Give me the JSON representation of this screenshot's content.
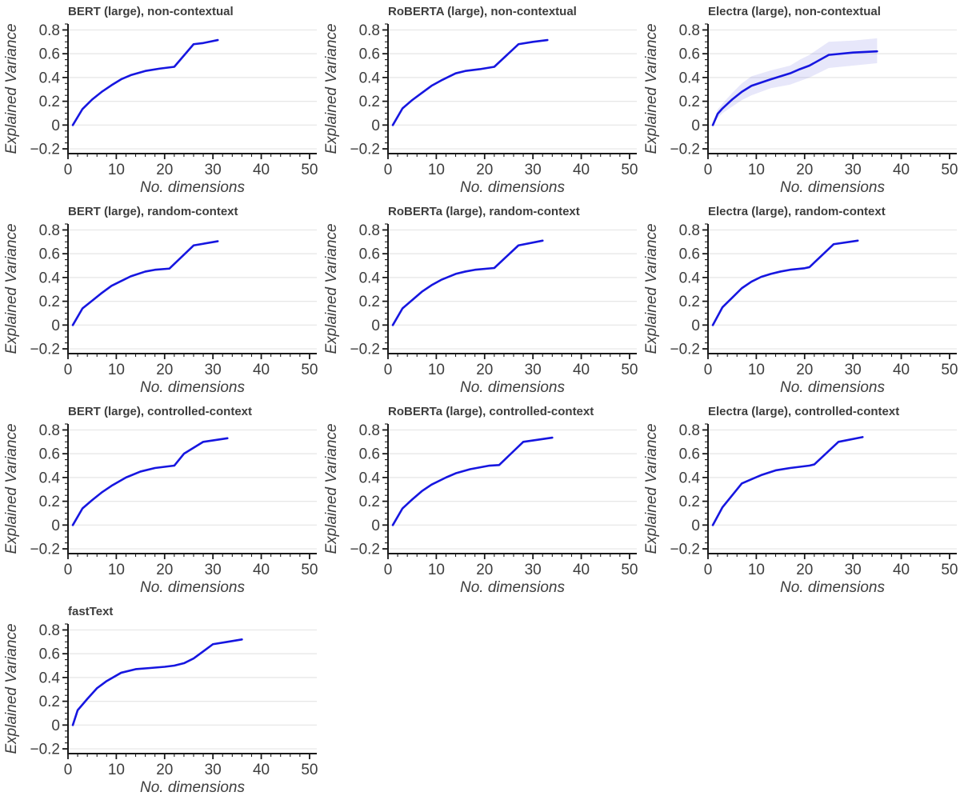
{
  "figure_title": "",
  "colors": {
    "line": "#1616e0",
    "band_fill": "#6a6ae0",
    "band_opacity": 0.16,
    "grid": "#e6e6e6",
    "spine": "#1a1a1a",
    "text": "#3d3d3d",
    "background": "#ffffff"
  },
  "axes_style": {
    "xlabel": "No. dimensions",
    "ylabel": "Explained Variance",
    "xlim": [
      0,
      50
    ],
    "ylim": [
      -0.2,
      0.85
    ],
    "x_major_ticks": [
      0,
      10,
      20,
      30,
      40,
      50
    ],
    "x_tick_labels": [
      "0",
      "10",
      "20",
      "30",
      "40",
      "50"
    ],
    "x_minor_step": 2,
    "y_major_ticks": [
      -0.2,
      0,
      0.2,
      0.4,
      0.6,
      0.8
    ],
    "y_tick_labels": [
      "−0.2",
      "0",
      "0.2",
      "0.4",
      "0.6",
      "0.8"
    ],
    "y_minor_step": 0.05,
    "grid": "horizontal-major-only",
    "legend": "none"
  },
  "chart_data": [
    {
      "type": "line",
      "title": "BERT (large), non-contextual",
      "xlabel": "No. dimensions",
      "ylabel": "Explained Variance",
      "x": [
        1,
        3,
        5,
        7,
        9,
        11,
        13,
        16,
        19,
        22,
        26,
        28,
        31
      ],
      "y": [
        0,
        0.135,
        0.215,
        0.28,
        0.335,
        0.385,
        0.42,
        0.455,
        0.475,
        0.49,
        0.68,
        0.69,
        0.715
      ]
    },
    {
      "type": "line",
      "title": "RoBERTA (large), non-contextual",
      "xlabel": "No. dimensions",
      "ylabel": "Explained Variance",
      "x": [
        1,
        3,
        5,
        7,
        9,
        11,
        14,
        16,
        19,
        22,
        27,
        30,
        33
      ],
      "y": [
        0,
        0.14,
        0.21,
        0.27,
        0.33,
        0.375,
        0.435,
        0.455,
        0.47,
        0.49,
        0.68,
        0.7,
        0.715
      ]
    },
    {
      "type": "line",
      "title": "Electra (large), non-contextual",
      "xlabel": "No. dimensions",
      "ylabel": "Explained Variance",
      "x": [
        1,
        2,
        3,
        5,
        7,
        9,
        13,
        17,
        19,
        21,
        25,
        30,
        35
      ],
      "y": [
        0,
        0.095,
        0.14,
        0.215,
        0.28,
        0.33,
        0.385,
        0.435,
        0.47,
        0.5,
        0.59,
        0.61,
        0.62
      ],
      "band_lower": [
        0,
        0.06,
        0.1,
        0.155,
        0.21,
        0.25,
        0.31,
        0.34,
        0.37,
        0.4,
        0.48,
        0.5,
        0.52
      ],
      "band_upper": [
        0.005,
        0.13,
        0.18,
        0.27,
        0.35,
        0.41,
        0.46,
        0.5,
        0.55,
        0.59,
        0.7,
        0.71,
        0.73
      ]
    },
    {
      "type": "line",
      "title": "BERT (large), random-context",
      "xlabel": "No. dimensions",
      "ylabel": "Explained Variance",
      "x": [
        1,
        3,
        5,
        7,
        9,
        11,
        13,
        16,
        18,
        21,
        26,
        31
      ],
      "y": [
        0,
        0.14,
        0.205,
        0.27,
        0.33,
        0.37,
        0.41,
        0.45,
        0.465,
        0.475,
        0.67,
        0.705
      ]
    },
    {
      "type": "line",
      "title": "RoBERTa (large), random-context",
      "xlabel": "No. dimensions",
      "ylabel": "Explained Variance",
      "x": [
        1,
        3,
        5,
        7,
        9,
        11,
        14,
        16,
        18,
        22,
        27,
        32
      ],
      "y": [
        0,
        0.14,
        0.21,
        0.28,
        0.335,
        0.38,
        0.43,
        0.45,
        0.465,
        0.48,
        0.67,
        0.71
      ]
    },
    {
      "type": "line",
      "title": "Electra (large), random-context",
      "xlabel": "No. dimensions",
      "ylabel": "Explained Variance",
      "x": [
        1,
        3,
        5,
        7,
        9,
        11,
        13,
        15,
        17,
        20,
        21,
        26,
        31
      ],
      "y": [
        0,
        0.15,
        0.23,
        0.31,
        0.365,
        0.405,
        0.43,
        0.45,
        0.465,
        0.478,
        0.487,
        0.68,
        0.71
      ]
    },
    {
      "type": "line",
      "title": "BERT (large), controlled-context",
      "xlabel": "No. dimensions",
      "ylabel": "Explained Variance",
      "x": [
        1,
        3,
        5,
        7,
        9,
        12,
        15,
        18,
        20,
        22,
        24,
        28,
        33
      ],
      "y": [
        0,
        0.14,
        0.21,
        0.275,
        0.33,
        0.4,
        0.45,
        0.48,
        0.49,
        0.5,
        0.6,
        0.7,
        0.73
      ]
    },
    {
      "type": "line",
      "title": "RoBERTa (large), controlled-context",
      "xlabel": "No. dimensions",
      "ylabel": "Explained Variance",
      "x": [
        1,
        3,
        5,
        7,
        9,
        12,
        14,
        17,
        19,
        21,
        23,
        28,
        34
      ],
      "y": [
        0,
        0.14,
        0.215,
        0.285,
        0.34,
        0.4,
        0.435,
        0.47,
        0.485,
        0.5,
        0.505,
        0.7,
        0.735
      ]
    },
    {
      "type": "line",
      "title": "Electra (large), controlled-context",
      "xlabel": "No. dimensions",
      "ylabel": "Explained Variance",
      "x": [
        1,
        3,
        5,
        7,
        9,
        11,
        14,
        17,
        19,
        21,
        22,
        27,
        32
      ],
      "y": [
        0,
        0.15,
        0.25,
        0.35,
        0.385,
        0.42,
        0.46,
        0.48,
        0.49,
        0.5,
        0.51,
        0.7,
        0.74
      ]
    },
    {
      "type": "line",
      "title": "fastText",
      "xlabel": "No. dimensions",
      "ylabel": "Explained Variance",
      "x": [
        1,
        2,
        4,
        6,
        8,
        11,
        14,
        17,
        20,
        22,
        24,
        26,
        28,
        30,
        33,
        36
      ],
      "y": [
        0,
        0.125,
        0.22,
        0.31,
        0.37,
        0.44,
        0.47,
        0.48,
        0.49,
        0.5,
        0.52,
        0.56,
        0.62,
        0.68,
        0.7,
        0.72
      ]
    }
  ]
}
